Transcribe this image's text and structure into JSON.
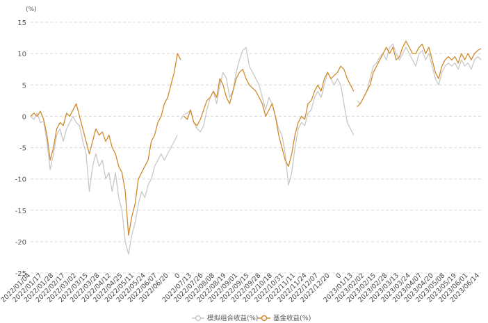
{
  "chart_data": {
    "type": "line",
    "ylabel": "(%)",
    "ylim": [
      -25,
      15
    ],
    "yticks": [
      15,
      10,
      5,
      0,
      -5,
      -10,
      -15,
      -20,
      -25
    ],
    "grid": "horizontal dashed",
    "legend_position": "bottom-center",
    "x_tick_labels": [
      "2022/01/04",
      "2022/01/17",
      "2022/01/28",
      "2022/02/17",
      "2022/03/02",
      "2022/03/15",
      "2022/03/28",
      "2022/04/12",
      "2022/04/25",
      "2022/05/11",
      "2022/05/24",
      "2022/06/07",
      "2022/06/20",
      "0",
      "2022/07/13",
      "2022/07/26",
      "2022/08/08",
      "2022/08/19",
      "2022/09/01",
      "2022/09/15",
      "2022/09/28",
      "2022/10/18",
      "2022/10/31",
      "2022/11/11",
      "2022/11/24",
      "2022/12/07",
      "2022/12/20",
      "0",
      "2023/01/13",
      "2023/02/02",
      "2023/02/15",
      "2023/02/28",
      "2023/03/13",
      "2023/03/24",
      "2023/04/07",
      "2023/04/20",
      "2023/05/08",
      "2023/05/19",
      "2023/06/01",
      "2023/06/14"
    ],
    "series": [
      {
        "name": "模拟组合收益(%)",
        "color": "#c8c8c8",
        "segments": [
          [
            [
              0,
              0
            ],
            [
              1,
              -0.5
            ],
            [
              2,
              0.5
            ],
            [
              3,
              -1
            ],
            [
              4,
              -0.8
            ],
            [
              5,
              -4
            ],
            [
              6,
              -8.5
            ],
            [
              7,
              -6
            ],
            [
              8,
              -3
            ],
            [
              9,
              -2
            ],
            [
              10,
              -4
            ],
            [
              11,
              -2
            ],
            [
              12,
              -1
            ],
            [
              13,
              0
            ],
            [
              14,
              -1
            ],
            [
              15,
              -1.5
            ],
            [
              16,
              -4
            ],
            [
              17,
              -6
            ],
            [
              18,
              -12
            ],
            [
              19,
              -8
            ],
            [
              20,
              -6
            ],
            [
              21,
              -8
            ],
            [
              22,
              -7
            ],
            [
              23,
              -10
            ],
            [
              24,
              -9
            ],
            [
              25,
              -12
            ],
            [
              26,
              -9
            ],
            [
              27,
              -13
            ],
            [
              28,
              -15
            ],
            [
              29,
              -20
            ],
            [
              30,
              -22
            ],
            [
              31,
              -19
            ],
            [
              32,
              -17
            ],
            [
              33,
              -14
            ],
            [
              34,
              -12
            ],
            [
              35,
              -13
            ],
            [
              36,
              -11
            ],
            [
              37,
              -10
            ],
            [
              38,
              -8
            ],
            [
              39,
              -7
            ],
            [
              40,
              -6
            ],
            [
              41,
              -7
            ],
            [
              42,
              -6
            ],
            [
              43,
              -5
            ],
            [
              44,
              -4
            ],
            [
              45,
              -3
            ]
          ],
          [
            [
              46,
              -0.5
            ],
            [
              47,
              0.3
            ],
            [
              48,
              0.5
            ],
            [
              49,
              1
            ],
            [
              50,
              -1
            ],
            [
              51,
              -2
            ],
            [
              52,
              -2.5
            ],
            [
              53,
              -1.5
            ],
            [
              54,
              1
            ],
            [
              55,
              3
            ],
            [
              56,
              4
            ],
            [
              57,
              2
            ],
            [
              58,
              5
            ],
            [
              59,
              7
            ],
            [
              60,
              6
            ],
            [
              61,
              3
            ],
            [
              62,
              4
            ],
            [
              63,
              7
            ],
            [
              64,
              9
            ],
            [
              65,
              10.5
            ],
            [
              66,
              11
            ],
            [
              67,
              8
            ],
            [
              68,
              7
            ],
            [
              69,
              6
            ],
            [
              70,
              5
            ],
            [
              71,
              3
            ],
            [
              72,
              1
            ],
            [
              73,
              3
            ],
            [
              74,
              2
            ],
            [
              75,
              0
            ],
            [
              76,
              -2
            ],
            [
              77,
              -3
            ],
            [
              78,
              -6
            ],
            [
              79,
              -11
            ],
            [
              80,
              -9
            ],
            [
              81,
              -5
            ],
            [
              82,
              -2
            ],
            [
              83,
              -1
            ],
            [
              84,
              -1.5
            ],
            [
              85,
              0.5
            ],
            [
              86,
              1
            ],
            [
              87,
              3
            ],
            [
              88,
              4
            ],
            [
              89,
              3
            ],
            [
              90,
              5
            ],
            [
              91,
              7
            ],
            [
              92,
              6
            ],
            [
              93,
              5
            ],
            [
              94,
              6
            ],
            [
              95,
              5
            ],
            [
              96,
              2
            ],
            [
              97,
              -1
            ],
            [
              98,
              -2
            ],
            [
              99,
              -3
            ]
          ],
          [
            [
              100,
              2.5
            ],
            [
              101,
              2
            ],
            [
              102,
              3
            ],
            [
              103,
              4
            ],
            [
              104,
              6
            ],
            [
              105,
              8
            ],
            [
              106,
              8.5
            ],
            [
              107,
              9.5
            ],
            [
              108,
              10
            ],
            [
              109,
              9
            ],
            [
              110,
              11
            ],
            [
              111,
              11.5
            ],
            [
              112,
              10
            ],
            [
              113,
              9
            ],
            [
              114,
              10
            ],
            [
              115,
              11
            ],
            [
              116,
              10
            ],
            [
              117,
              9
            ],
            [
              118,
              8
            ],
            [
              119,
              10
            ],
            [
              120,
              10.5
            ],
            [
              121,
              9
            ],
            [
              122,
              10
            ],
            [
              123,
              8
            ],
            [
              124,
              6
            ],
            [
              125,
              5
            ],
            [
              126,
              7
            ],
            [
              127,
              8
            ],
            [
              128,
              8.5
            ],
            [
              129,
              8
            ],
            [
              130,
              8.5
            ],
            [
              131,
              7.5
            ],
            [
              132,
              9
            ],
            [
              133,
              8
            ],
            [
              134,
              8.5
            ],
            [
              135,
              7.5
            ],
            [
              136,
              9
            ],
            [
              137,
              9.5
            ],
            [
              138,
              9
            ]
          ]
        ]
      },
      {
        "name": "基金收益(%)",
        "color": "#d08a2a",
        "segments": [
          [
            [
              0,
              0
            ],
            [
              1,
              0.5
            ],
            [
              2,
              0
            ],
            [
              3,
              0.8
            ],
            [
              4,
              -0.5
            ],
            [
              5,
              -3
            ],
            [
              6,
              -7
            ],
            [
              7,
              -5
            ],
            [
              8,
              -2
            ],
            [
              9,
              -1
            ],
            [
              10,
              -1.5
            ],
            [
              11,
              0.5
            ],
            [
              12,
              0
            ],
            [
              13,
              1
            ],
            [
              14,
              2
            ],
            [
              15,
              0
            ],
            [
              16,
              -2
            ],
            [
              17,
              -4
            ],
            [
              18,
              -6
            ],
            [
              19,
              -4
            ],
            [
              20,
              -2
            ],
            [
              21,
              -3
            ],
            [
              22,
              -2.5
            ],
            [
              23,
              -4
            ],
            [
              24,
              -3
            ],
            [
              25,
              -5
            ],
            [
              26,
              -6
            ],
            [
              27,
              -8
            ],
            [
              28,
              -9
            ],
            [
              29,
              -12
            ],
            [
              30,
              -19
            ],
            [
              31,
              -16
            ],
            [
              32,
              -14
            ],
            [
              33,
              -10
            ],
            [
              34,
              -9
            ],
            [
              35,
              -8
            ],
            [
              36,
              -7
            ],
            [
              37,
              -4
            ],
            [
              38,
              -3
            ],
            [
              39,
              -1
            ],
            [
              40,
              0
            ],
            [
              41,
              2
            ],
            [
              42,
              3
            ],
            [
              43,
              5
            ],
            [
              44,
              7
            ],
            [
              45,
              10
            ],
            [
              46,
              9
            ]
          ],
          [
            [
              47,
              0
            ],
            [
              48,
              -0.5
            ],
            [
              49,
              1
            ],
            [
              50,
              -1
            ],
            [
              51,
              -1.5
            ],
            [
              52,
              -0.5
            ],
            [
              53,
              1
            ],
            [
              54,
              2.5
            ],
            [
              55,
              3
            ],
            [
              56,
              4
            ],
            [
              57,
              3
            ],
            [
              58,
              6
            ],
            [
              59,
              5
            ],
            [
              60,
              3
            ],
            [
              61,
              2
            ],
            [
              62,
              4
            ],
            [
              63,
              6
            ],
            [
              64,
              7
            ],
            [
              65,
              7.5
            ],
            [
              66,
              6
            ],
            [
              67,
              5
            ],
            [
              68,
              4.5
            ],
            [
              69,
              4
            ],
            [
              70,
              3
            ],
            [
              71,
              2
            ],
            [
              72,
              0
            ],
            [
              73,
              1
            ],
            [
              74,
              2
            ],
            [
              75,
              0
            ],
            [
              76,
              -3
            ],
            [
              77,
              -5
            ],
            [
              78,
              -7
            ],
            [
              79,
              -8
            ],
            [
              80,
              -6
            ],
            [
              81,
              -3
            ],
            [
              82,
              -1
            ],
            [
              83,
              0
            ],
            [
              84,
              -0.5
            ],
            [
              85,
              2
            ],
            [
              86,
              2.5
            ],
            [
              87,
              4
            ],
            [
              88,
              5
            ],
            [
              89,
              4
            ],
            [
              90,
              6
            ],
            [
              91,
              7
            ],
            [
              92,
              6
            ],
            [
              93,
              6.5
            ],
            [
              94,
              7
            ],
            [
              95,
              8
            ],
            [
              96,
              7.5
            ],
            [
              97,
              6
            ],
            [
              98,
              5
            ],
            [
              99,
              4
            ]
          ],
          [
            [
              100,
              1.5
            ],
            [
              101,
              2
            ],
            [
              102,
              3
            ],
            [
              103,
              4
            ],
            [
              104,
              5
            ],
            [
              105,
              7
            ],
            [
              106,
              8
            ],
            [
              107,
              9
            ],
            [
              108,
              10
            ],
            [
              109,
              11
            ],
            [
              110,
              10
            ],
            [
              111,
              11
            ],
            [
              112,
              9
            ],
            [
              113,
              9.5
            ],
            [
              114,
              11
            ],
            [
              115,
              12
            ],
            [
              116,
              11
            ],
            [
              117,
              10
            ],
            [
              118,
              10
            ],
            [
              119,
              11
            ],
            [
              120,
              11.5
            ],
            [
              121,
              10
            ],
            [
              122,
              11
            ],
            [
              123,
              9
            ],
            [
              124,
              7
            ],
            [
              125,
              6
            ],
            [
              126,
              8
            ],
            [
              127,
              9
            ],
            [
              128,
              9.5
            ],
            [
              129,
              9
            ],
            [
              130,
              9.5
            ],
            [
              131,
              8.5
            ],
            [
              132,
              10
            ],
            [
              133,
              9
            ],
            [
              134,
              10
            ],
            [
              135,
              9
            ],
            [
              136,
              10
            ],
            [
              137,
              10.5
            ],
            [
              138,
              10.8
            ]
          ]
        ]
      }
    ]
  }
}
